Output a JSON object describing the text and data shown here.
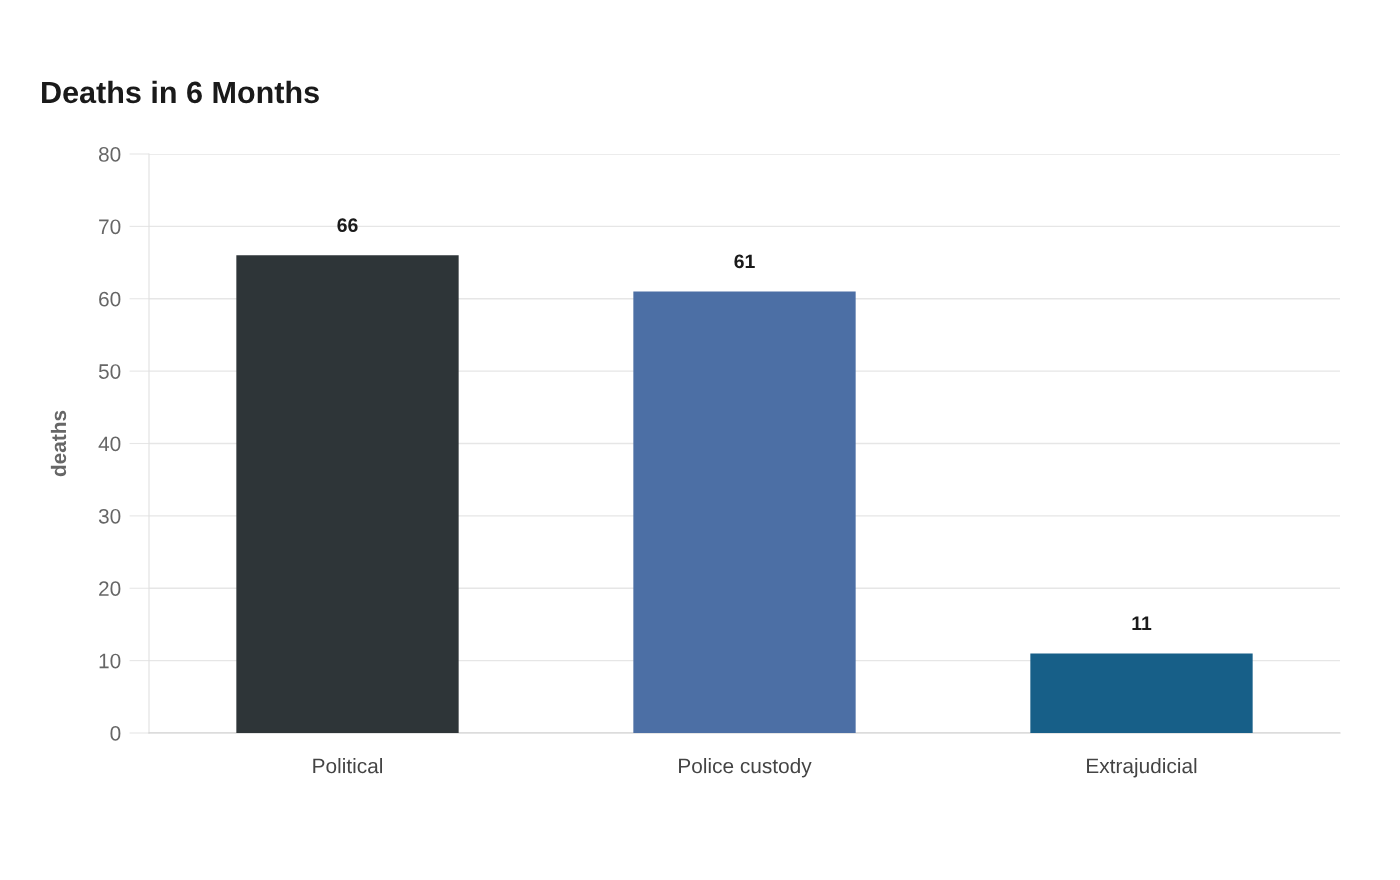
{
  "chart_data": {
    "type": "bar",
    "title": "Deaths in 6 Months",
    "ylabel": "deaths",
    "categories": [
      "Political",
      "Police custody",
      "Extrajudicial"
    ],
    "values": [
      66,
      61,
      11
    ],
    "colors": [
      "#2e3538",
      "#4c6fa5",
      "#175f88"
    ],
    "ylim": [
      0,
      80
    ],
    "yticks": [
      0,
      10,
      20,
      30,
      40,
      50,
      60,
      70,
      80
    ],
    "grid": "y",
    "data_labels": true
  }
}
